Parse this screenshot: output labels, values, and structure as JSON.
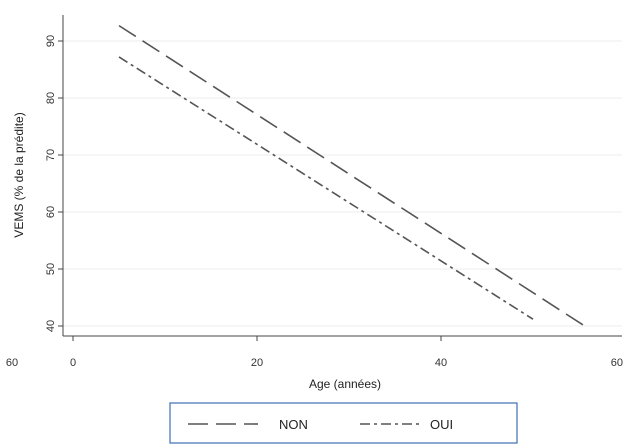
{
  "chart_data": {
    "type": "line",
    "title": "",
    "xlabel": "Age (années)",
    "ylabel": "VEMS (% de la prédite)",
    "xlim": [
      0,
      60
    ],
    "ylim": [
      38,
      95
    ],
    "x_ticks": [
      {
        "value": 0,
        "label": "0"
      },
      {
        "value": 20,
        "label": "20"
      },
      {
        "value": 40,
        "label": "40"
      },
      {
        "value": 60,
        "label": "60"
      }
    ],
    "y_ticks": [
      {
        "value": 40,
        "label": "40"
      },
      {
        "value": 50,
        "label": "50"
      },
      {
        "value": 60,
        "label": "60"
      },
      {
        "value": 70,
        "label": "70"
      },
      {
        "value": 80,
        "label": "80"
      },
      {
        "value": 90,
        "label": "90"
      }
    ],
    "left_edge_label": "60",
    "grid": true,
    "legend_position": "bottom",
    "series": [
      {
        "name": "NON",
        "x": [
          5,
          56
        ],
        "y": [
          92.7,
          39.6
        ],
        "dash": "long",
        "color": "#555555"
      },
      {
        "name": "OUI",
        "x": [
          5,
          50
        ],
        "y": [
          87.2,
          41.2
        ],
        "dash": "dash-dot",
        "color": "#555555"
      }
    ]
  }
}
